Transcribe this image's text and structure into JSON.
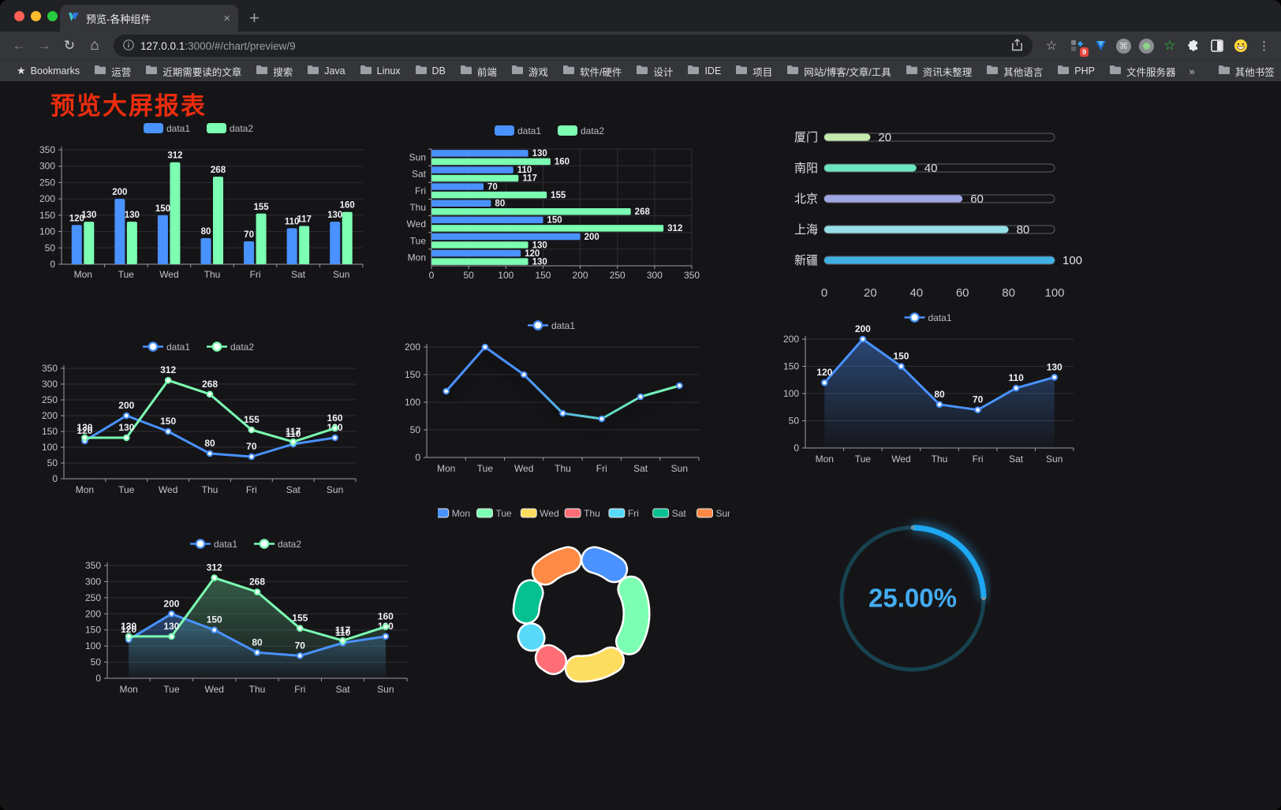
{
  "browser": {
    "tab_title": "预览-各种组件",
    "close_tab": "×",
    "new_tab": "+",
    "url_host": "127.0.0.1",
    "url_rest": ":3000/#/chart/preview/9",
    "extension_badge": "9",
    "bookmarks_label": "Bookmarks",
    "bookmarks": [
      "运营",
      "近期需要读的文章",
      "搜索",
      "Java",
      "Linux",
      "DB",
      "前端",
      "游戏",
      "软件/硬件",
      "设计",
      "IDE",
      "项目",
      "网站/博客/文章/工具",
      "资讯未整理",
      "其他语言",
      "PHP",
      "文件服务器"
    ],
    "bookmarks_overflow": "»",
    "other_bookmarks": "其他书签"
  },
  "page": {
    "title": "预览大屏报表",
    "title_color": "#ec2d0e",
    "background": "#151518"
  },
  "palette": {
    "axis": "#9a9da6",
    "tick_label": "#c3c5cc",
    "grid": "#2e2e36",
    "value_label": "#f0f1f4",
    "legend_label": "#b9bcc4"
  },
  "chart_data": [
    {
      "id": "bar-grouped",
      "type": "bar",
      "categories": [
        "Mon",
        "Tue",
        "Wed",
        "Thu",
        "Fri",
        "Sat",
        "Sun"
      ],
      "series": [
        {
          "name": "data1",
          "color": "#4992ff",
          "values": [
            120,
            200,
            150,
            80,
            70,
            110,
            130
          ]
        },
        {
          "name": "data2",
          "color": "#7cffb2",
          "values": [
            130,
            130,
            312,
            268,
            155,
            117,
            160
          ]
        }
      ],
      "ylim": [
        0,
        350
      ],
      "ystep": 50,
      "labels": true,
      "legend": "rect"
    },
    {
      "id": "hbar-grouped",
      "type": "barh",
      "categories": [
        "Sun",
        "Sat",
        "Fri",
        "Thu",
        "Wed",
        "Tue",
        "Mon"
      ],
      "series": [
        {
          "name": "data1",
          "color": "#4992ff",
          "values": [
            130,
            110,
            70,
            80,
            150,
            200,
            120
          ]
        },
        {
          "name": "data2",
          "color": "#7cffb2",
          "values": [
            160,
            117,
            155,
            268,
            312,
            130,
            130
          ]
        }
      ],
      "xlim": [
        0,
        350
      ],
      "xstep": 50,
      "labels": true,
      "legend": "rect"
    },
    {
      "id": "progress-bars",
      "type": "progress",
      "rows": [
        {
          "label": "厦门",
          "value": 20,
          "color": "#c4ebad"
        },
        {
          "label": "南阳",
          "value": 40,
          "color": "#6be6c1"
        },
        {
          "label": "北京",
          "value": 60,
          "color": "#a0a7e6"
        },
        {
          "label": "上海",
          "value": 80,
          "color": "#96dee8"
        },
        {
          "label": "新疆",
          "value": 100,
          "color": "#3fb1e3"
        }
      ],
      "xlim": [
        0,
        100
      ],
      "xticks": [
        0,
        20,
        40,
        60,
        80,
        100
      ]
    },
    {
      "id": "line-two",
      "type": "line",
      "categories": [
        "Mon",
        "Tue",
        "Wed",
        "Thu",
        "Fri",
        "Sat",
        "Sun"
      ],
      "series": [
        {
          "name": "data1",
          "color": "#4992ff",
          "values": [
            120,
            200,
            150,
            80,
            70,
            110,
            130
          ]
        },
        {
          "name": "data2",
          "color": "#7cffb2",
          "values": [
            130,
            130,
            312,
            268,
            155,
            117,
            160
          ]
        }
      ],
      "ylim": [
        0,
        350
      ],
      "ystep": 50,
      "labels": true,
      "legend": "line"
    },
    {
      "id": "line-gradient",
      "type": "line",
      "categories": [
        "Mon",
        "Tue",
        "Wed",
        "Thu",
        "Fri",
        "Sat",
        "Sun"
      ],
      "series": [
        {
          "name": "data1",
          "color": "#4992ff",
          "gradient": [
            "#4992ff",
            "#4992ff",
            "#5fd8c8",
            "#7cffb2"
          ],
          "values": [
            120,
            200,
            150,
            80,
            70,
            110,
            130
          ]
        }
      ],
      "ylim": [
        0,
        200
      ],
      "ystep": 50,
      "labels": false,
      "legend": "line",
      "shadow": true
    },
    {
      "id": "line-area",
      "type": "line",
      "categories": [
        "Mon",
        "Tue",
        "Wed",
        "Thu",
        "Fri",
        "Sat",
        "Sun"
      ],
      "series": [
        {
          "name": "data1",
          "color": "#4992ff",
          "area": [
            "rgba(73,146,255,0.40)",
            "rgba(73,146,255,0.02)"
          ],
          "values": [
            120,
            200,
            150,
            80,
            70,
            110,
            130
          ]
        }
      ],
      "ylim": [
        0,
        200
      ],
      "ystep": 50,
      "labels": true,
      "legend": "line"
    },
    {
      "id": "line-area-two",
      "type": "line",
      "categories": [
        "Mon",
        "Tue",
        "Wed",
        "Thu",
        "Fri",
        "Sat",
        "Sun"
      ],
      "series": [
        {
          "name": "data1",
          "color": "#4992ff",
          "area": [
            "rgba(73,146,255,0.38)",
            "rgba(73,146,255,0.02)"
          ],
          "values": [
            120,
            200,
            150,
            80,
            70,
            110,
            130
          ]
        },
        {
          "name": "data2",
          "color": "#7cffb2",
          "area": [
            "rgba(124,255,178,0.30)",
            "rgba(124,255,178,0.02)"
          ],
          "values": [
            130,
            130,
            312,
            268,
            155,
            117,
            160
          ]
        }
      ],
      "ylim": [
        0,
        350
      ],
      "ystep": 50,
      "labels": true,
      "legend": "line"
    },
    {
      "id": "pie-donut",
      "type": "pie",
      "slices": [
        {
          "label": "Mon",
          "value": 120,
          "color": "#4992ff"
        },
        {
          "label": "Tue",
          "value": 200,
          "color": "#7cffb2"
        },
        {
          "label": "Wed",
          "value": 150,
          "color": "#fddd60"
        },
        {
          "label": "Thu",
          "value": 80,
          "color": "#ff6e76"
        },
        {
          "label": "Fri",
          "value": 70,
          "color": "#58d9f9"
        },
        {
          "label": "Sat",
          "value": 110,
          "color": "#05c091"
        },
        {
          "label": "Sun",
          "value": 130,
          "color": "#ff8a45"
        }
      ]
    },
    {
      "id": "gauge",
      "type": "gauge",
      "value": 25,
      "display": "25.00%",
      "color": "#1ea7f2",
      "track": "#17424f",
      "text_color": "#44acf1"
    }
  ]
}
